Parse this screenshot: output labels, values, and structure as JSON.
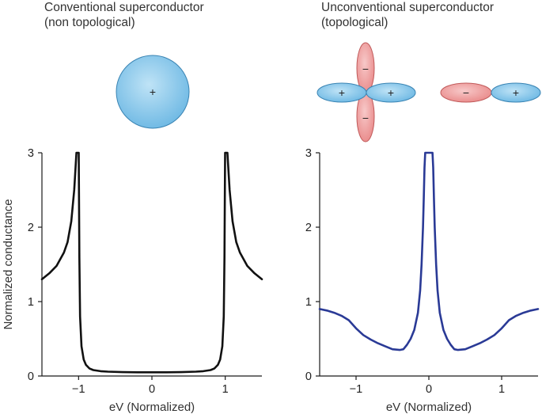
{
  "panels": [
    {
      "title_line1": "Conventional superconductor",
      "title_line2": "(non topological)"
    },
    {
      "title_line1": "Unconventional superconductor",
      "title_line2": "(topological)"
    }
  ],
  "orbitals": {
    "plus_sign": "+",
    "minus_sign": "−",
    "positive_color": "#7ec3ea",
    "negative_color": "#ef9a9a"
  },
  "chart_data": [
    {
      "type": "line",
      "title": "",
      "xlabel": "eV (Normalized)",
      "ylabel": "Normalized conductance",
      "xlim": [
        -1.5,
        1.5
      ],
      "ylim": [
        0,
        3
      ],
      "xticks": [
        -1,
        0,
        1
      ],
      "xtick_labels": [
        "−1",
        "0",
        "1"
      ],
      "yticks": [
        0,
        1,
        2,
        3
      ],
      "ytick_labels": [
        "0",
        "1",
        "2",
        "3"
      ],
      "grid": false,
      "series": [
        {
          "color": "#111111",
          "x": [
            -1.5,
            -1.4,
            -1.3,
            -1.2,
            -1.15,
            -1.1,
            -1.06,
            -1.03,
            -1.015,
            -1.005,
            -0.998,
            -0.99,
            -0.98,
            -0.96,
            -0.93,
            -0.9,
            -0.85,
            -0.8,
            -0.7,
            -0.6,
            -0.4,
            -0.2,
            0.0,
            0.2,
            0.4,
            0.6,
            0.7,
            0.8,
            0.85,
            0.9,
            0.93,
            0.96,
            0.98,
            0.99,
            0.998,
            1.005,
            1.015,
            1.03,
            1.06,
            1.1,
            1.15,
            1.2,
            1.3,
            1.4,
            1.5
          ],
          "y": [
            1.3,
            1.38,
            1.48,
            1.66,
            1.8,
            2.08,
            2.5,
            3.0,
            3.0,
            3.0,
            3.0,
            1.6,
            0.8,
            0.4,
            0.22,
            0.15,
            0.1,
            0.08,
            0.065,
            0.058,
            0.052,
            0.05,
            0.05,
            0.05,
            0.052,
            0.058,
            0.065,
            0.08,
            0.1,
            0.15,
            0.22,
            0.4,
            0.8,
            1.6,
            3.0,
            3.0,
            3.0,
            3.0,
            2.5,
            2.08,
            1.8,
            1.66,
            1.48,
            1.38,
            1.3
          ]
        }
      ]
    },
    {
      "type": "line",
      "title": "",
      "xlabel": "eV (Normalized)",
      "ylabel": "",
      "xlim": [
        -1.5,
        1.5
      ],
      "ylim": [
        0,
        3
      ],
      "xticks": [
        -1,
        0,
        1
      ],
      "xtick_labels": [
        "−1",
        "0",
        "1"
      ],
      "yticks": [
        0,
        1,
        2,
        3
      ],
      "ytick_labels": [
        "0",
        "1",
        "2",
        "3"
      ],
      "grid": false,
      "series": [
        {
          "color": "#2a3a96",
          "x": [
            -1.5,
            -1.4,
            -1.3,
            -1.2,
            -1.1,
            -1.0,
            -0.9,
            -0.8,
            -0.7,
            -0.6,
            -0.5,
            -0.4,
            -0.35,
            -0.3,
            -0.25,
            -0.2,
            -0.15,
            -0.12,
            -0.1,
            -0.08,
            -0.07,
            -0.06,
            -0.05,
            -0.04,
            0.04,
            0.05,
            0.06,
            0.07,
            0.08,
            0.1,
            0.12,
            0.15,
            0.2,
            0.25,
            0.3,
            0.35,
            0.4,
            0.5,
            0.6,
            0.7,
            0.8,
            0.9,
            1.0,
            1.1,
            1.2,
            1.3,
            1.4,
            1.5
          ],
          "y": [
            0.9,
            0.88,
            0.85,
            0.81,
            0.75,
            0.64,
            0.55,
            0.49,
            0.44,
            0.4,
            0.36,
            0.35,
            0.36,
            0.42,
            0.5,
            0.62,
            0.85,
            1.15,
            1.5,
            2.0,
            2.4,
            2.8,
            3.0,
            3.0,
            3.0,
            3.0,
            2.8,
            2.4,
            2.0,
            1.5,
            1.15,
            0.85,
            0.62,
            0.5,
            0.42,
            0.36,
            0.35,
            0.36,
            0.4,
            0.44,
            0.49,
            0.55,
            0.64,
            0.75,
            0.81,
            0.85,
            0.88,
            0.9
          ]
        }
      ]
    }
  ]
}
